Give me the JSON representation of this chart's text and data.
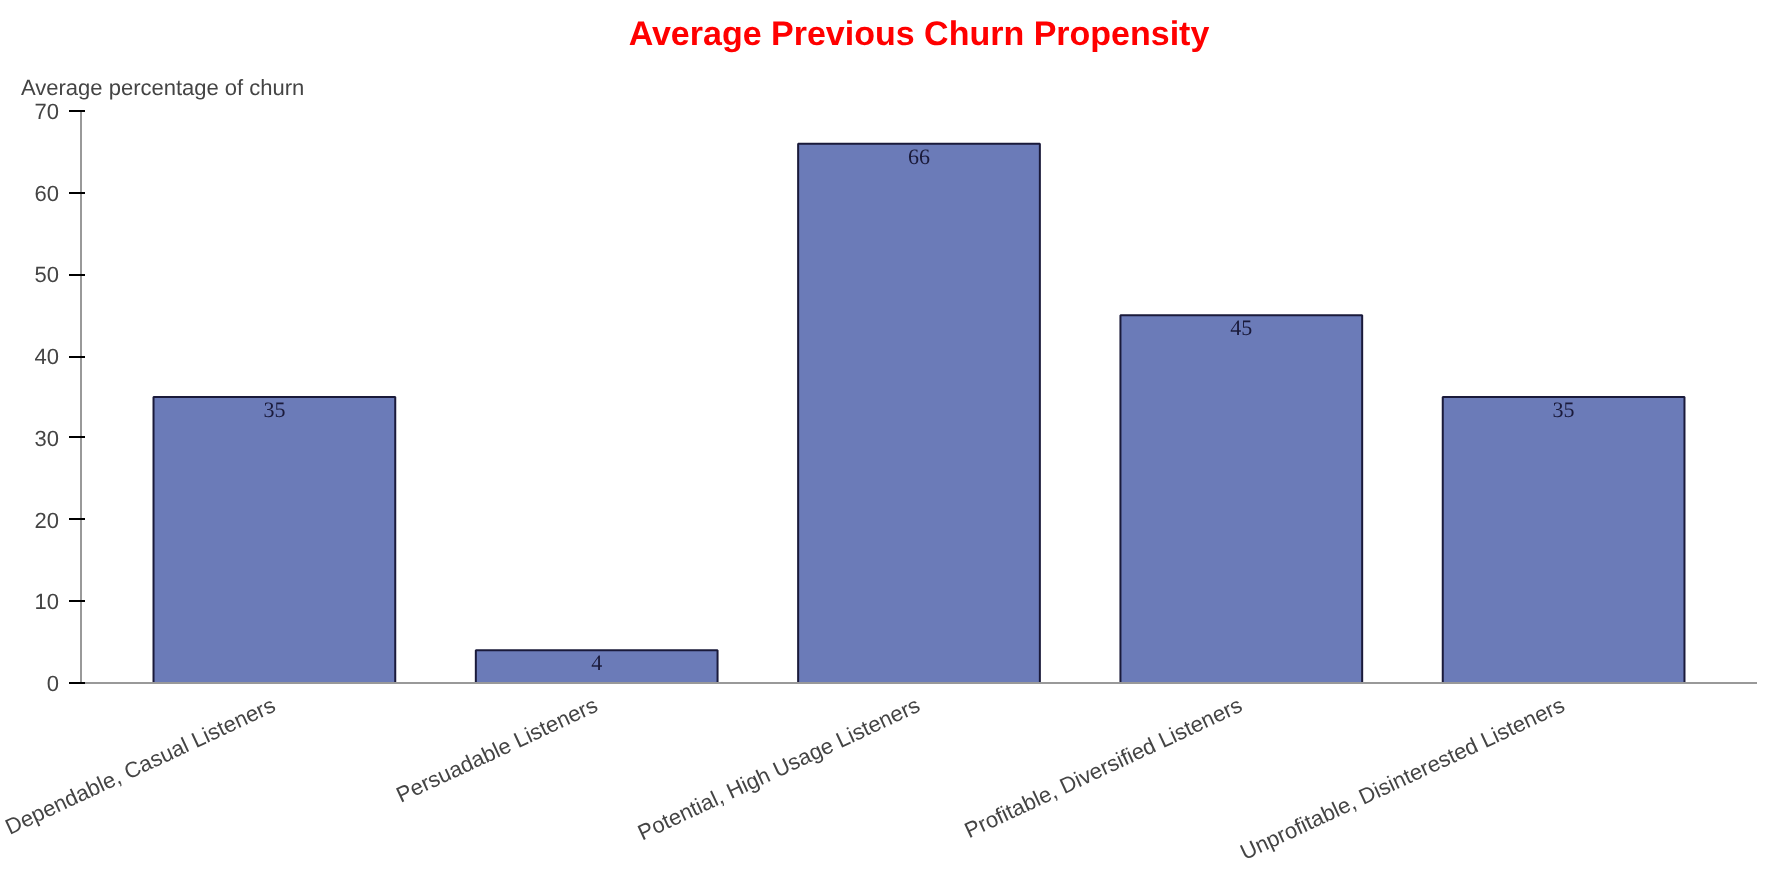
{
  "chart_data": {
    "type": "bar",
    "title": "Average Previous Churn Propensity",
    "ylabel": "Average percentage of churn",
    "categories": [
      "Dependable, Casual Listeners",
      "Persuadable Listeners",
      "Potential, High Usage Listeners",
      "Profitable, Diversified Listeners",
      "Unprofitable, Disinterested Listeners"
    ],
    "values": [
      35,
      4,
      66,
      45,
      35
    ],
    "color": "#6b7bb8",
    "ylim": [
      0,
      70
    ],
    "yticks": [
      0,
      10,
      20,
      30,
      40,
      50,
      60,
      70
    ],
    "grid": false,
    "data_labels": true
  }
}
